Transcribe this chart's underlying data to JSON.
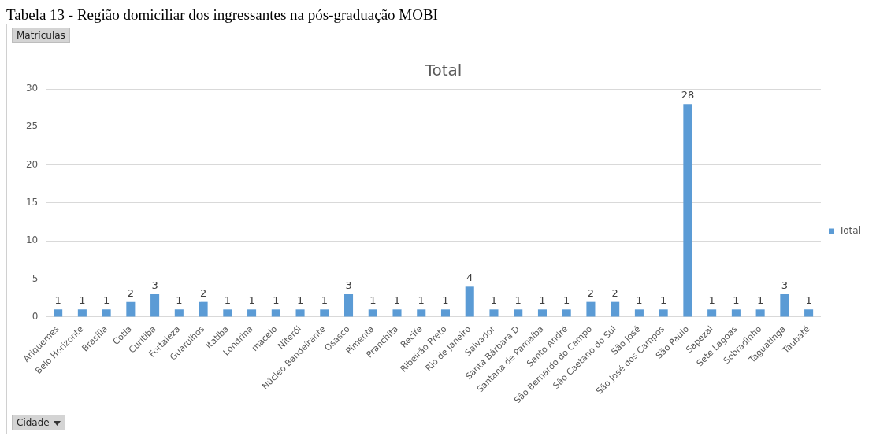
{
  "chart_data": {
    "type": "bar",
    "title": "Total",
    "annotations": [
      "Tabela 13 - Região domiciliar dos ingressantes na pós-graduação MOBI",
      "Matrículas",
      "Cidade"
    ],
    "categories": [
      "Ariquemes",
      "Belo Horizonte",
      "Brasília",
      "Cotia",
      "Curitiba",
      "Fortaleza",
      "Guarulhos",
      "Itatiba",
      "Londrina",
      "maceio",
      "Niterói",
      "Núcleo Bandeirante",
      "Osasco",
      "Pimenta",
      "Pranchita",
      "Recife",
      "Ribeirão Preto",
      "Rio de Janeiro",
      "Salvador",
      "Santa Bárbara D",
      "Santana de Parnaíba",
      "Santo André",
      "São Bernardo do Campo",
      "São Caetano do Sul",
      "São José",
      "São José dos Campos",
      "São Paulo",
      "Sapezal",
      "Sete Lagoas",
      "Sobradinho",
      "Taguatinga",
      "Taubaté"
    ],
    "series": [
      {
        "name": "Total",
        "color": "#5b9bd5",
        "values": [
          1,
          1,
          1,
          2,
          3,
          1,
          2,
          1,
          1,
          1,
          1,
          1,
          3,
          1,
          1,
          1,
          1,
          4,
          1,
          1,
          1,
          1,
          2,
          2,
          1,
          1,
          28,
          1,
          1,
          1,
          3,
          1
        ]
      }
    ],
    "ylim": [
      0,
      30
    ],
    "yticks": [
      0,
      5,
      10,
      15,
      20,
      25,
      30
    ],
    "grid": "y",
    "legend": "right",
    "data_labels": true
  }
}
